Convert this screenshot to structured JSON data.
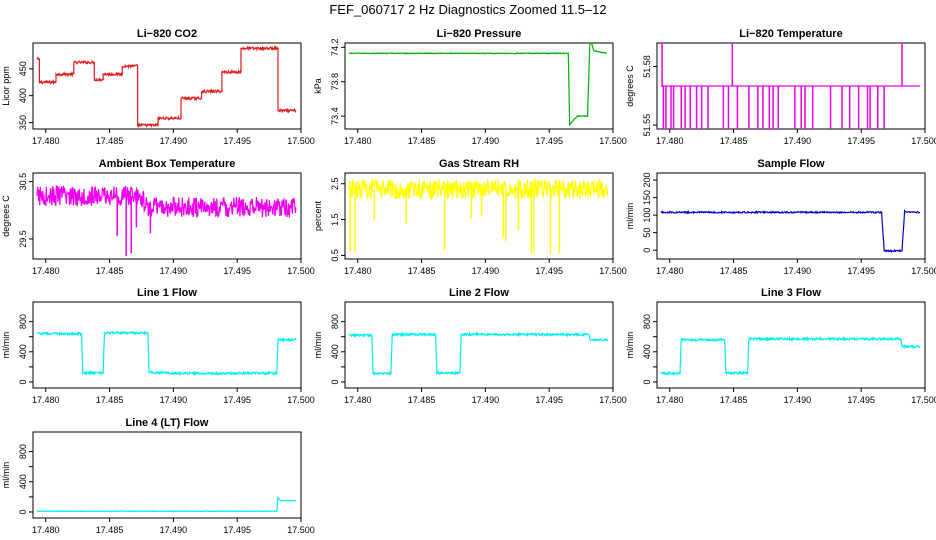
{
  "figure": {
    "title": "FEF_060717  2 Hz Diagnostics Zoomed 11.5–12"
  },
  "chart_data": [
    {
      "type": "line",
      "title": "Li−820 CO2",
      "ylabel": "Licor ppm",
      "color": "#e31a1c",
      "xlim": [
        17.479,
        17.5
      ],
      "xticks": [
        17.48,
        17.485,
        17.49,
        17.495,
        17.5
      ],
      "xtick_labels": [
        "17.480",
        "17.485",
        "17.490",
        "17.495",
        "17.500"
      ],
      "ylim": [
        338,
        498
      ],
      "yticks": [
        350,
        400,
        450
      ],
      "ytick_labels": [
        "350",
        "400",
        "450"
      ],
      "noise": 2.5,
      "x": [
        17.4793,
        17.4795,
        17.4795,
        17.4808,
        17.4808,
        17.4822,
        17.4822,
        17.4838,
        17.4838,
        17.4845,
        17.4845,
        17.486,
        17.486,
        17.4872,
        17.4872,
        17.4888,
        17.4888,
        17.4906,
        17.4906,
        17.4922,
        17.4922,
        17.4938,
        17.4938,
        17.4953,
        17.4953,
        17.4982,
        17.4982,
        17.4996
      ],
      "y": [
        468,
        468,
        425,
        425,
        440,
        440,
        462,
        462,
        430,
        430,
        440,
        440,
        455,
        455,
        345,
        345,
        358,
        358,
        395,
        395,
        408,
        408,
        444,
        444,
        488,
        488,
        372,
        372
      ]
    },
    {
      "type": "line",
      "title": "Li−820 Pressure",
      "ylabel": "kPa",
      "color": "#00b000",
      "xlim": [
        17.479,
        17.5
      ],
      "xticks": [
        17.48,
        17.485,
        17.49,
        17.495,
        17.5
      ],
      "xtick_labels": [
        "17.480",
        "17.485",
        "17.490",
        "17.495",
        "17.500"
      ],
      "ylim": [
        73.25,
        74.25
      ],
      "yticks": [
        73.4,
        73.8,
        74.2
      ],
      "ytick_labels": [
        "73.4",
        "73.8",
        "74.2"
      ],
      "noise": 0.004,
      "x": [
        17.4793,
        17.4965,
        17.4966,
        17.4972,
        17.498,
        17.4982,
        17.4985,
        17.4995
      ],
      "y": [
        74.13,
        74.13,
        73.3,
        73.4,
        73.4,
        74.3,
        74.16,
        74.13
      ]
    },
    {
      "type": "line",
      "title": "Li−820 Temperature",
      "ylabel": "degrees C",
      "color": "#ee00ee",
      "xlim": [
        17.479,
        17.5
      ],
      "xticks": [
        17.48,
        17.485,
        17.49,
        17.495,
        17.5
      ],
      "xtick_labels": [
        "17.480",
        "17.485",
        "17.490",
        "17.495",
        "17.500"
      ],
      "ylim": [
        51.548,
        51.592
      ],
      "yticks": [
        51.55,
        51.58
      ],
      "ytick_labels": [
        "51.55",
        "51.58"
      ],
      "base": 51.57,
      "spike_x": [
        17.4795,
        17.4797,
        17.4801,
        17.4803,
        17.4809,
        17.4812,
        17.4816,
        17.4821,
        17.4825,
        17.483,
        17.4842,
        17.4846,
        17.4853,
        17.4862,
        17.4869,
        17.4873,
        17.4878,
        17.4881,
        17.4885,
        17.4898,
        17.4903,
        17.4906,
        17.4912,
        17.4926,
        17.4935,
        17.4941,
        17.4948,
        17.4955,
        17.4957,
        17.4963,
        17.4968
      ],
      "spike_y": [
        51.548,
        51.548,
        51.548,
        51.548,
        51.548,
        51.548,
        51.548,
        51.548,
        51.548,
        51.548,
        51.548,
        51.548,
        51.548,
        51.548,
        51.548,
        51.548,
        51.548,
        51.548,
        51.548,
        51.548,
        51.548,
        51.548,
        51.548,
        51.548,
        51.548,
        51.548,
        51.548,
        51.548,
        51.548,
        51.548,
        51.548
      ],
      "up_spike_x": [
        17.4794,
        17.4849,
        17.4982
      ],
      "up_spike_y": [
        51.592,
        51.592,
        51.592
      ]
    },
    {
      "type": "line",
      "title": "Ambient Box Temperature",
      "ylabel": "degrees C",
      "color": "#ee00ee",
      "xlim": [
        17.479,
        17.5
      ],
      "xticks": [
        17.48,
        17.485,
        17.49,
        17.495,
        17.5
      ],
      "xtick_labels": [
        "17.480",
        "17.485",
        "17.490",
        "17.495",
        "17.500"
      ],
      "ylim": [
        29.15,
        30.65
      ],
      "yticks": [
        29.5,
        30.5
      ],
      "ytick_labels": [
        "29.5",
        "30.5"
      ],
      "noise": 0.18,
      "x": [
        17.4793,
        17.4875,
        17.4878,
        17.4996
      ],
      "y": [
        30.25,
        30.25,
        30.05,
        30.05
      ],
      "spike_x": [
        17.4863,
        17.4867,
        17.4856,
        17.4882,
        17.4871
      ],
      "spike_y": [
        29.2,
        29.25,
        29.55,
        29.6,
        29.7
      ]
    },
    {
      "type": "line",
      "title": "Gas Stream RH",
      "ylabel": "percent",
      "color": "#ffff00",
      "xlim": [
        17.479,
        17.5
      ],
      "xticks": [
        17.48,
        17.485,
        17.49,
        17.495,
        17.5
      ],
      "xtick_labels": [
        "17.480",
        "17.485",
        "17.490",
        "17.495",
        "17.500"
      ],
      "ylim": [
        0.4,
        2.8
      ],
      "yticks": [
        0.5,
        1.5,
        2.5
      ],
      "ytick_labels": [
        "0.5",
        "1.5",
        "2.5"
      ],
      "noise": 0.28,
      "x": [
        17.4793,
        17.4996
      ],
      "y": [
        2.35,
        2.35
      ],
      "spike_x": [
        17.4794,
        17.4798,
        17.4813,
        17.4838,
        17.4868,
        17.4889,
        17.4897,
        17.4914,
        17.4916,
        17.4926,
        17.4936,
        17.4938,
        17.4951,
        17.4958
      ],
      "spike_y": [
        0.6,
        0.6,
        1.5,
        1.4,
        0.65,
        1.55,
        1.6,
        1.0,
        0.9,
        1.2,
        0.55,
        0.6,
        0.55,
        0.55
      ]
    },
    {
      "type": "line",
      "title": "Sample Flow",
      "ylabel": "ml/min",
      "color": "#0000cc",
      "xlim": [
        17.479,
        17.5
      ],
      "xticks": [
        17.48,
        17.485,
        17.49,
        17.495,
        17.5
      ],
      "xtick_labels": [
        "17.480",
        "17.485",
        "17.490",
        "17.495",
        "17.500"
      ],
      "ylim": [
        -25,
        220
      ],
      "yticks": [
        0,
        50,
        100,
        150,
        200
      ],
      "ytick_labels": [
        "0",
        "50",
        "100",
        "150",
        "200"
      ],
      "noise": 2,
      "x": [
        17.4793,
        17.4966,
        17.4968,
        17.4982,
        17.4984,
        17.4986,
        17.4996
      ],
      "y": [
        108,
        108,
        -2,
        -2,
        112,
        108,
        108
      ]
    },
    {
      "type": "line",
      "title": "Line 1 Flow",
      "ylabel": "ml/min",
      "color": "#00eeee",
      "xlim": [
        17.479,
        17.5
      ],
      "xticks": [
        17.48,
        17.485,
        17.49,
        17.495,
        17.5
      ],
      "xtick_labels": [
        "17.480",
        "17.485",
        "17.490",
        "17.495",
        "17.500"
      ],
      "ylim": [
        -80,
        1060
      ],
      "yticks": [
        0,
        200,
        400,
        600,
        800
      ],
      "ytick_labels": [
        "0",
        "",
        "400",
        "",
        "800"
      ],
      "noise": 14,
      "x": [
        17.4793,
        17.4828,
        17.4829,
        17.4845,
        17.4846,
        17.488,
        17.4881,
        17.4895,
        17.4896,
        17.4981,
        17.4982,
        17.4996
      ],
      "y": [
        640,
        640,
        120,
        120,
        650,
        650,
        125,
        125,
        115,
        115,
        560,
        560
      ]
    },
    {
      "type": "line",
      "title": "Line 2 Flow",
      "ylabel": "ml/min",
      "color": "#00eeee",
      "xlim": [
        17.479,
        17.5
      ],
      "xticks": [
        17.48,
        17.485,
        17.49,
        17.495,
        17.5
      ],
      "xtick_labels": [
        "17.480",
        "17.485",
        "17.490",
        "17.495",
        "17.500"
      ],
      "ylim": [
        -80,
        1060
      ],
      "yticks": [
        0,
        200,
        400,
        600,
        800
      ],
      "ytick_labels": [
        "0",
        "",
        "400",
        "",
        "800"
      ],
      "noise": 14,
      "x": [
        17.4793,
        17.4811,
        17.4812,
        17.4826,
        17.4827,
        17.4861,
        17.4862,
        17.488,
        17.4881,
        17.4981,
        17.4982,
        17.4996
      ],
      "y": [
        620,
        620,
        115,
        115,
        630,
        630,
        120,
        120,
        630,
        630,
        560,
        560
      ]
    },
    {
      "type": "line",
      "title": "Line 3 Flow",
      "ylabel": "ml/min",
      "color": "#00eeee",
      "xlim": [
        17.479,
        17.5
      ],
      "xticks": [
        17.48,
        17.485,
        17.49,
        17.495,
        17.5
      ],
      "xtick_labels": [
        "17.480",
        "17.485",
        "17.490",
        "17.495",
        "17.500"
      ],
      "ylim": [
        -80,
        1060
      ],
      "yticks": [
        0,
        200,
        400,
        600,
        800
      ],
      "ytick_labels": [
        "0",
        "",
        "400",
        "",
        "800"
      ],
      "noise": 14,
      "x": [
        17.4793,
        17.4808,
        17.4809,
        17.4843,
        17.4844,
        17.4861,
        17.4862,
        17.4981,
        17.4982,
        17.4996
      ],
      "y": [
        115,
        115,
        560,
        560,
        120,
        120,
        570,
        570,
        470,
        470
      ]
    },
    {
      "type": "line",
      "title": "Line 4 (LT) Flow",
      "ylabel": "ml/min",
      "color": "#00eeee",
      "xlim": [
        17.479,
        17.5
      ],
      "xticks": [
        17.48,
        17.485,
        17.49,
        17.495,
        17.5
      ],
      "xtick_labels": [
        "17.480",
        "17.485",
        "17.490",
        "17.495",
        "17.500"
      ],
      "ylim": [
        -80,
        1060
      ],
      "yticks": [
        0,
        200,
        400,
        600,
        800
      ],
      "ytick_labels": [
        "0",
        "",
        "400",
        "",
        "800"
      ],
      "noise": 4,
      "x": [
        17.4793,
        17.4981,
        17.4982,
        17.4984,
        17.4996
      ],
      "y": [
        10,
        10,
        190,
        150,
        150
      ]
    }
  ]
}
